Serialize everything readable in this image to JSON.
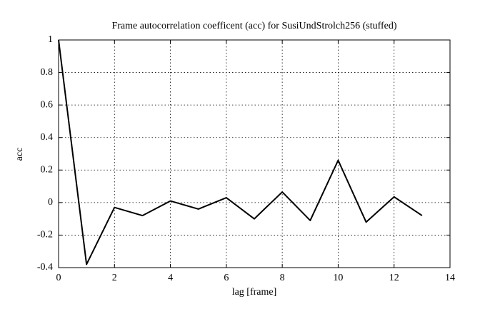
{
  "chart_data": {
    "type": "line",
    "title": "Frame autocorrelation coefficent (acc) for SusiUndStrolch256 (stuffed)",
    "x_label": "lag [frame]",
    "y_label": "acc",
    "x": [
      0,
      1,
      2,
      3,
      4,
      5,
      6,
      7,
      8,
      9,
      10,
      11,
      12,
      13
    ],
    "series": [
      {
        "name": "acc",
        "color": "#000000",
        "values": [
          1,
          -0.38,
          -0.03,
          -0.08,
          0.01,
          -0.04,
          0.03,
          -0.1,
          0.065,
          -0.11,
          0.26,
          -0.12,
          0.035,
          -0.08
        ]
      }
    ],
    "xlim": [
      0,
      14
    ],
    "xticks": [
      0,
      2,
      4,
      6,
      8,
      10,
      12,
      14
    ],
    "ylim": [
      -0.4,
      1
    ],
    "yticks": [
      -0.4,
      -0.2,
      0,
      0.2,
      0.4,
      0.6,
      0.8,
      1
    ],
    "grid": true
  }
}
